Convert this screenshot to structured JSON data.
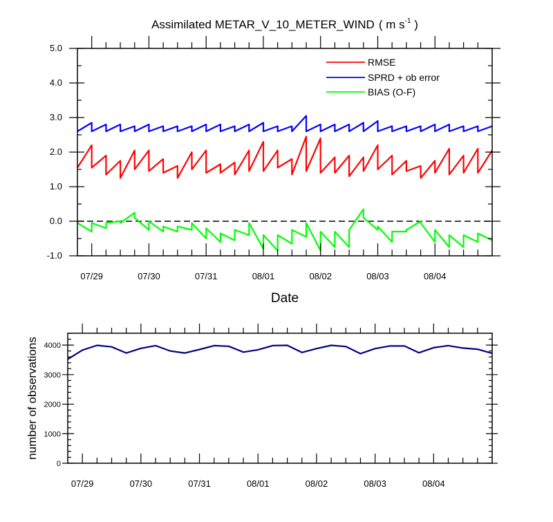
{
  "chart_data": [
    {
      "type": "line",
      "title": "Assimilated METAR_V_10_METER_WIND",
      "title_units_prefix": "( m s",
      "title_units_exp": "-1",
      "title_units_suffix": " )",
      "xlabel": "Date",
      "ylabel": "",
      "ylim": [
        -1.0,
        5.0
      ],
      "xlim_days": [
        0.0,
        7.25
      ],
      "yticks": [
        "-1.0",
        "0.0",
        "1.0",
        "2.0",
        "3.0",
        "4.0",
        "5.0"
      ],
      "yticks_values": [
        -1,
        0,
        1,
        2,
        3,
        4,
        5
      ],
      "xtick_labels": [
        "07/29",
        "07/30",
        "07/31",
        "08/01",
        "08/02",
        "08/03",
        "08/04"
      ],
      "xtick_days": [
        0.25,
        1.25,
        2.25,
        3.25,
        4.25,
        5.25,
        6.25
      ],
      "zero_line": true,
      "legend": [
        "RMSE",
        "SPRD + ob error",
        "BIAS (O-F)"
      ],
      "series": [
        {
          "name": "RMSE",
          "color": "#ff0000",
          "x": [
            0.0,
            0.25,
            0.25,
            0.5,
            0.5,
            0.75,
            0.75,
            1.0,
            1.0,
            1.25,
            1.25,
            1.5,
            1.5,
            1.75,
            1.75,
            2.0,
            2.0,
            2.25,
            2.25,
            2.5,
            2.5,
            2.75,
            2.75,
            3.0,
            3.0,
            3.25,
            3.25,
            3.5,
            3.5,
            3.75,
            3.75,
            4.0,
            4.0,
            4.25,
            4.25,
            4.5,
            4.5,
            4.75,
            4.75,
            5.0,
            5.0,
            5.25,
            5.25,
            5.5,
            5.5,
            5.75,
            5.75,
            6.0,
            6.0,
            6.25,
            6.25,
            6.5,
            6.5,
            6.75,
            6.75,
            7.0,
            7.0,
            7.25
          ],
          "values": [
            1.55,
            2.2,
            1.55,
            1.9,
            1.35,
            1.75,
            1.25,
            2.05,
            1.5,
            2.05,
            1.45,
            1.8,
            1.4,
            1.6,
            1.25,
            2.0,
            1.5,
            2.05,
            1.4,
            1.65,
            1.4,
            1.7,
            1.35,
            2.05,
            1.45,
            2.3,
            1.45,
            2.05,
            1.55,
            1.8,
            1.35,
            2.45,
            1.45,
            2.4,
            1.4,
            1.85,
            1.4,
            1.9,
            1.3,
            1.85,
            1.45,
            2.2,
            1.5,
            1.9,
            1.35,
            1.75,
            1.45,
            1.6,
            1.25,
            1.75,
            1.4,
            2.1,
            1.35,
            1.9,
            1.4,
            2.1,
            1.4,
            2.05
          ]
        },
        {
          "name": "SPRD + ob error",
          "color": "#0000ff",
          "x": [
            0.0,
            0.25,
            0.25,
            0.5,
            0.5,
            0.75,
            0.75,
            1.0,
            1.0,
            1.25,
            1.25,
            1.5,
            1.5,
            1.75,
            1.75,
            2.0,
            2.0,
            2.25,
            2.25,
            2.5,
            2.5,
            2.75,
            2.75,
            3.0,
            3.0,
            3.25,
            3.25,
            3.5,
            3.5,
            3.75,
            3.75,
            4.0,
            4.0,
            4.25,
            4.25,
            4.5,
            4.5,
            4.75,
            4.75,
            5.0,
            5.0,
            5.25,
            5.25,
            5.5,
            5.5,
            5.75,
            5.75,
            6.0,
            6.0,
            6.25,
            6.25,
            6.5,
            6.5,
            6.75,
            6.75,
            7.0,
            7.0,
            7.25
          ],
          "values": [
            2.6,
            2.85,
            2.6,
            2.8,
            2.6,
            2.8,
            2.6,
            2.75,
            2.6,
            2.8,
            2.6,
            2.75,
            2.6,
            2.75,
            2.6,
            2.75,
            2.6,
            2.8,
            2.6,
            2.8,
            2.6,
            2.75,
            2.6,
            2.8,
            2.6,
            2.85,
            2.6,
            2.75,
            2.6,
            2.75,
            2.6,
            3.05,
            2.6,
            2.8,
            2.6,
            2.8,
            2.6,
            2.8,
            2.6,
            2.85,
            2.6,
            2.9,
            2.6,
            2.75,
            2.6,
            2.75,
            2.6,
            2.75,
            2.6,
            2.8,
            2.6,
            2.8,
            2.6,
            2.75,
            2.6,
            2.75,
            2.6,
            2.75
          ]
        },
        {
          "name": "BIAS (O-F)",
          "color": "#00ff00",
          "x": [
            0.0,
            0.25,
            0.25,
            0.5,
            0.5,
            0.75,
            0.75,
            1.0,
            1.0,
            1.25,
            1.25,
            1.5,
            1.5,
            1.75,
            1.75,
            2.0,
            2.0,
            2.25,
            2.25,
            2.5,
            2.5,
            2.75,
            2.75,
            3.0,
            3.0,
            3.25,
            3.25,
            3.5,
            3.5,
            3.75,
            3.75,
            4.0,
            4.0,
            4.25,
            4.25,
            4.5,
            4.5,
            4.75,
            4.75,
            5.0,
            5.0,
            5.25,
            5.25,
            5.5,
            5.5,
            5.75,
            5.75,
            6.0,
            6.0,
            6.25,
            6.25,
            6.5,
            6.5,
            6.75,
            6.75,
            7.0,
            7.0,
            7.25
          ],
          "values": [
            -0.05,
            -0.3,
            -0.05,
            -0.2,
            -0.05,
            0.0,
            -0.05,
            0.25,
            0.1,
            -0.25,
            0.0,
            -0.3,
            -0.15,
            -0.3,
            -0.15,
            -0.25,
            -0.05,
            -0.5,
            -0.2,
            -0.6,
            -0.35,
            -0.55,
            -0.25,
            -0.4,
            -0.05,
            -0.8,
            -0.4,
            -0.85,
            -0.4,
            -0.65,
            -0.25,
            -0.45,
            -0.05,
            -0.85,
            -0.3,
            -0.75,
            -0.3,
            -0.75,
            -0.25,
            0.35,
            0.1,
            -0.25,
            -0.15,
            -0.6,
            -0.3,
            -0.3,
            -0.25,
            0.0,
            -0.05,
            -0.6,
            -0.25,
            -0.75,
            -0.4,
            -0.75,
            -0.4,
            -0.6,
            -0.35,
            -0.55
          ]
        }
      ]
    },
    {
      "type": "line",
      "title": "",
      "xlabel": "",
      "ylabel": "number of observations",
      "ylim": [
        0,
        4400
      ],
      "xlim_days": [
        0.0,
        7.25
      ],
      "yticks": [
        "0",
        "1000",
        "2000",
        "3000",
        "4000"
      ],
      "yticks_values": [
        0,
        1000,
        2000,
        3000,
        4000
      ],
      "xtick_labels": [
        "07/29",
        "07/30",
        "07/31",
        "08/01",
        "08/02",
        "08/03",
        "08/04"
      ],
      "xtick_days": [
        0.25,
        1.25,
        2.25,
        3.25,
        4.25,
        5.25,
        6.25
      ],
      "series": [
        {
          "name": "number of observations",
          "color": "#000080",
          "x": [
            0.0,
            0.25,
            0.5,
            0.75,
            1.0,
            1.25,
            1.5,
            1.75,
            2.0,
            2.25,
            2.5,
            2.75,
            3.0,
            3.25,
            3.5,
            3.75,
            4.0,
            4.25,
            4.5,
            4.75,
            5.0,
            5.25,
            5.5,
            5.75,
            6.0,
            6.25,
            6.5,
            6.75,
            7.0,
            7.25
          ],
          "values": [
            3520,
            3830,
            3990,
            3940,
            3730,
            3890,
            3980,
            3800,
            3730,
            3850,
            3980,
            3960,
            3760,
            3840,
            3980,
            3990,
            3750,
            3880,
            3990,
            3950,
            3710,
            3880,
            3970,
            3970,
            3740,
            3910,
            3980,
            3900,
            3860,
            3720
          ]
        }
      ]
    }
  ]
}
